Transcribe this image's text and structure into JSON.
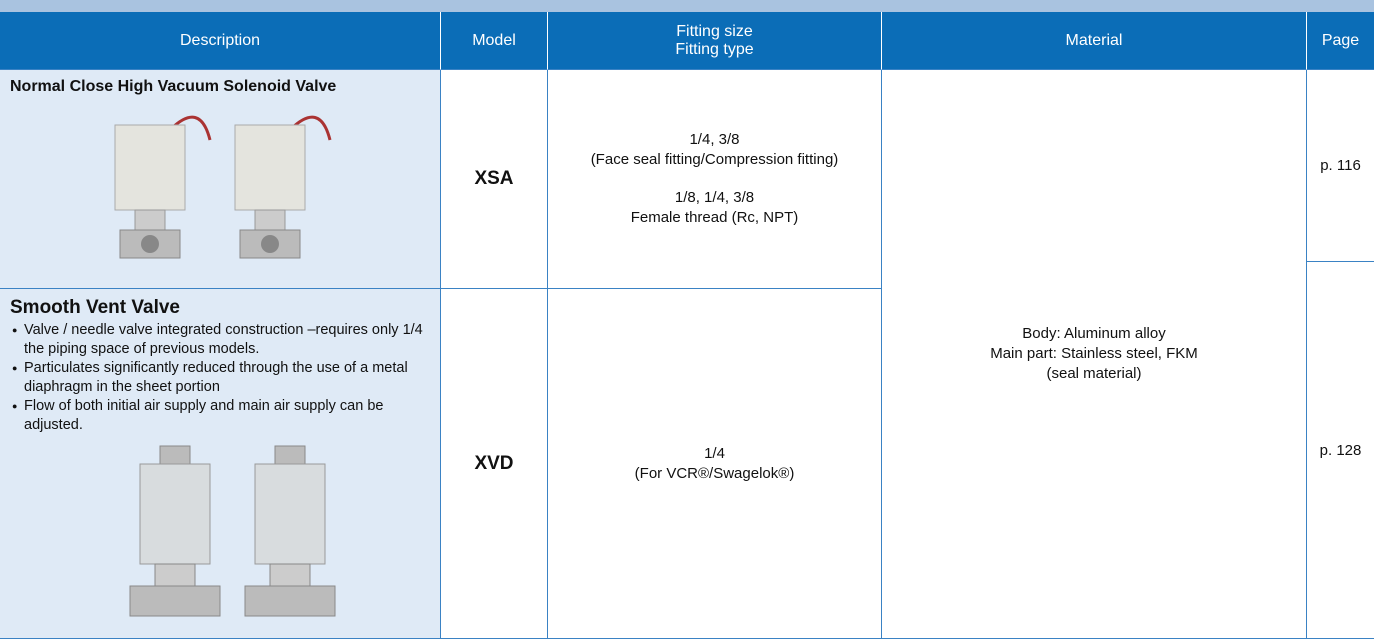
{
  "header": {
    "columns": [
      "Description",
      "Model",
      [
        "Fitting size",
        "Fitting type"
      ],
      "Material",
      "Page"
    ]
  },
  "rows": [
    {
      "title": "Normal Close High Vacuum Solenoid Valve",
      "bullets": [],
      "model": "XSA",
      "fitting": [
        "1/4, 3/8",
        "(Face seal fitting/Compression fitting)",
        "1/8, 1/4, 3/8",
        "Female thread (Rc, NPT)"
      ],
      "page": "p. 116"
    },
    {
      "title": "Smooth Vent Valve",
      "bullets": [
        "Valve / needle valve integrated construction –requires only 1/4 the piping space of previous models.",
        "Particulates significantly reduced through the use of a metal diaphragm in the sheet portion",
        "Flow of both initial air supply and main air supply can be adjusted."
      ],
      "model": "XVD",
      "fitting": [
        "1/4",
        "(For VCR®/Swagelok®)"
      ],
      "page": "p. 128"
    }
  ],
  "material": [
    "Body: Aluminum alloy",
    "Main part: Stainless steel, FKM",
    "(seal material)"
  ]
}
